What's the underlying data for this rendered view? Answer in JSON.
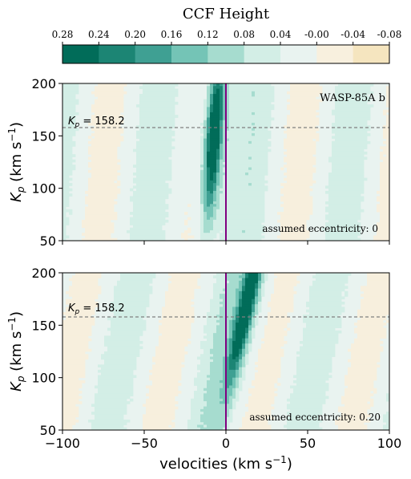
{
  "colorbar": {
    "title": "CCF Height",
    "ticks": [
      "0.28",
      "0.24",
      "0.20",
      "0.16",
      "0.12",
      "0.08",
      "0.04",
      "-0.00",
      "-0.04",
      "-0.08"
    ],
    "colors": [
      "#016c59",
      "#1c8574",
      "#3fa093",
      "#74c4b6",
      "#a6dccf",
      "#d3eee6",
      "#e9f3f0",
      "#f6f7f2",
      "#f8f0de",
      "#f5e5bf"
    ]
  },
  "chart_data": [
    {
      "type": "heatmap",
      "panel": "top",
      "annotation_title": "WASP-85A b",
      "kp_label": "K_p = 158.2",
      "kp_value": 158.2,
      "annotation": "assumed eccentricity: 0",
      "x_range": [
        -100,
        100
      ],
      "y_range": [
        50,
        200
      ],
      "y_ticks": [
        "50",
        "100",
        "150",
        "200"
      ],
      "ylabel": "K_p (km s^-1)",
      "vertical_line_x": 0,
      "signal": {
        "v_at_kp200": -5,
        "v_at_kp50": -12,
        "peak_kp": 150,
        "peak_height": 0.28
      }
    },
    {
      "type": "heatmap",
      "panel": "bottom",
      "kp_label": "K_p = 158.2",
      "kp_value": 158.2,
      "annotation": "assumed eccentricity: 0.20",
      "x_range": [
        -100,
        100
      ],
      "y_range": [
        50,
        200
      ],
      "y_ticks": [
        "50",
        "100",
        "150",
        "200"
      ],
      "x_ticks": [
        "−100",
        "−50",
        "0",
        "50",
        "100"
      ],
      "ylabel": "K_p (km s^-1)",
      "xlabel": "velocities (km s^-1)",
      "vertical_line_x": 0,
      "signal": {
        "v_at_kp200": 17,
        "v_at_kp50": -4,
        "peak_kp": 170,
        "peak_height": 0.26
      }
    }
  ]
}
